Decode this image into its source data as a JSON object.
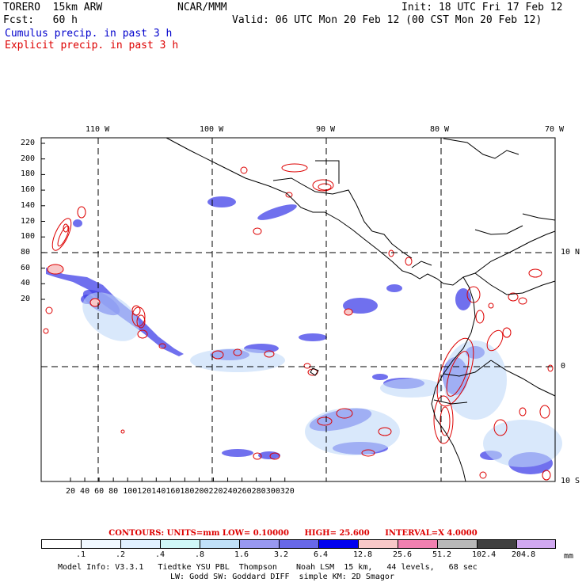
{
  "header": {
    "model": "TORERO  15km ARW",
    "org": "NCAR/MMM",
    "init": "Init: 18 UTC Fri 17 Feb 12",
    "fcst": "Fcst:   60 h",
    "valid": "Valid: 06 UTC Mon 20 Feb 12 (00 CST Mon 20 Feb 12)",
    "cumulus_label": "Cumulus precip. in past 3 h",
    "explicit_label": "Explicit precip. in past 3 h"
  },
  "colors": {
    "cumulus": "#0000cc",
    "explicit": "#dd0000"
  },
  "axes": {
    "top_lon": [
      "110 W",
      "100 W",
      "90 W",
      "80 W",
      "70 W"
    ],
    "right_lat": [
      "10 N",
      "0",
      "10 S"
    ],
    "left_y": [
      "220",
      "200",
      "180",
      "160",
      "140",
      "120",
      "100",
      "80",
      "60",
      "40",
      "20"
    ],
    "bottom_x": [
      "20",
      "40",
      "60",
      "80",
      "100",
      "120",
      "140",
      "160",
      "180",
      "200",
      "220",
      "240",
      "260",
      "280",
      "300",
      "320"
    ]
  },
  "contour_info": {
    "contours": "CONTOURS:  UNITS=mm  LOW= 0.10000",
    "high": "HIGH=  25.600",
    "interval": "INTERVAL=X  4.0000"
  },
  "colorbar": {
    "colors": [
      "#ffffff",
      "#f0f8ff",
      "#e0f0ff",
      "#d0f8f8",
      "#c0e0f8",
      "#9898f0",
      "#6868e8",
      "#0000ee",
      "#f8c8c8",
      "#f080b0",
      "#b8b8b8",
      "#404040",
      "#d0a8f0"
    ],
    "labels": [
      ".1",
      ".2",
      ".4",
      ".8",
      "1.6",
      "3.2",
      "6.4",
      "12.8",
      "25.6",
      "51.2",
      "102.4",
      "204.8"
    ],
    "units": "mm"
  },
  "footer": {
    "line1": "Model Info: V3.3.1   Tiedtke YSU PBL  Thompson    Noah LSM  15 km,   44 levels,   68 sec",
    "line2": "LW: Godd SW: Goddard DIFF  simple KM: 2D Smagor"
  }
}
